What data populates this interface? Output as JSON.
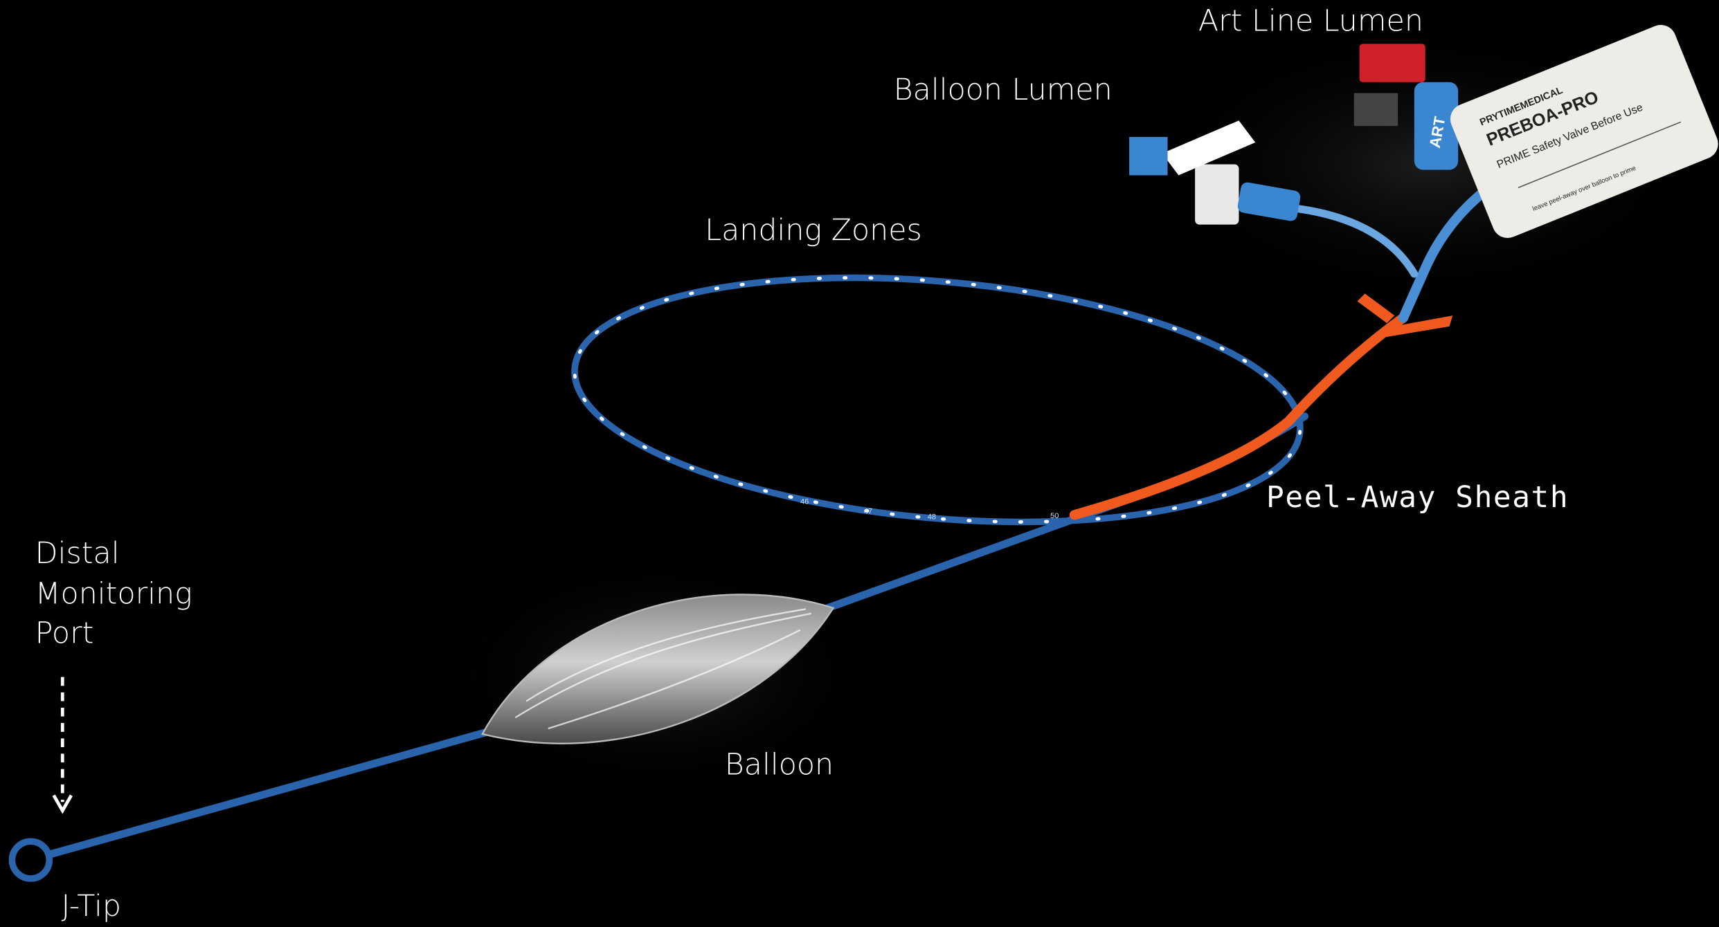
{
  "labels": {
    "art_line_lumen": "Art Line Lumen",
    "balloon_lumen": "Balloon Lumen",
    "landing_zones": "Landing Zones",
    "peel_away_sheath": "Peel-Away Sheath",
    "distal_monitoring_port": [
      "Distal",
      "Monitoring",
      "Port"
    ],
    "balloon": "Balloon",
    "j_tip": "J-Tip"
  },
  "device_markings": {
    "brand": "PRYTIMEMEDICAL",
    "product": "PREBOA-PRO",
    "prime_note": "PRIME Safety Valve Before Use",
    "peel_note": "leave peel-away over balloon to prime",
    "art": "ART",
    "depth_marks": [
      "46",
      "47",
      "48",
      "50"
    ]
  }
}
